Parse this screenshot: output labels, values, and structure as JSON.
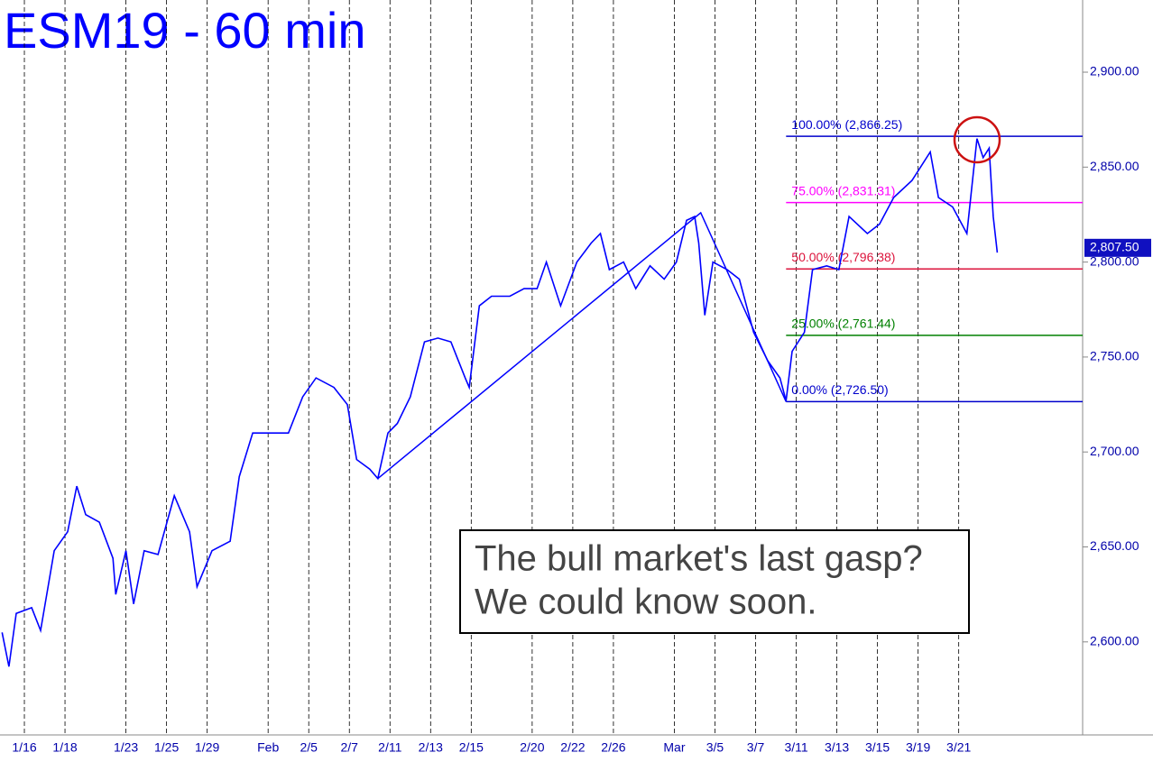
{
  "chart_data": {
    "type": "line",
    "title": "ESM19 - 60 min",
    "x": [
      -1.1,
      -0.76,
      -0.4,
      0.36,
      0.8,
      1.47,
      2.13,
      2.58,
      3.02,
      3.69,
      4.36,
      4.5,
      5.0,
      5.38,
      5.9,
      6.58,
      7.38,
      8.13,
      8.5,
      9.24,
      10.13,
      10.58,
      11.24,
      12.1,
      13.0,
      13.7,
      14.36,
      15.24,
      15.9,
      16.36,
      17.0,
      17.4,
      17.9,
      18.36,
      19.0,
      19.7,
      20.36,
      21.0,
      21.7,
      21.9,
      22.4,
      23.0,
      23.9,
      24.6,
      25.24,
      25.7,
      26.4,
      27.2,
      27.9,
      28.36,
      28.8,
      29.5,
      30.1,
      30.8,
      31.5,
      32.1,
      32.6,
      33.0,
      33.2,
      33.5,
      33.9,
      34.6,
      35.2,
      35.9,
      36.6,
      37.2,
      37.5,
      37.8,
      38.4,
      38.8,
      39.5,
      40.1,
      40.6,
      41.5,
      42.1,
      42.8,
      43.7,
      44.6,
      45.0,
      45.7,
      46.4,
      46.9,
      47.2,
      47.5,
      47.7,
      47.9
    ],
    "values": [
      2605,
      2587,
      2615,
      2618,
      2606,
      2648,
      2658,
      2682,
      2667,
      2663,
      2644,
      2625,
      2648,
      2620,
      2648,
      2646,
      2677,
      2658,
      2629,
      2648,
      2653,
      2687,
      2710,
      2710,
      2710,
      2729,
      2739,
      2734,
      2725,
      2696,
      2691,
      2686,
      2710,
      2715,
      2729,
      2758,
      2760,
      2758,
      2739,
      2734,
      2777,
      2782,
      2782,
      2786,
      2786,
      2800,
      2777,
      2800,
      2810,
      2815,
      2796,
      2800,
      2786,
      2798,
      2791,
      2800,
      2822,
      2824,
      2810,
      2772,
      2800,
      2796,
      2791,
      2763,
      2748,
      2739,
      2727,
      2753,
      2763,
      2796,
      2798,
      2796,
      2824,
      2815,
      2820,
      2834,
      2843,
      2858,
      2834,
      2829,
      2815,
      2865,
      2855,
      2860,
      2824,
      2805
    ],
    "color": "#0000ff",
    "xlim": [
      -1.2,
      52.1
    ],
    "xticks": [
      {
        "value": 0,
        "label": "1/16"
      },
      {
        "value": 2,
        "label": "1/18"
      },
      {
        "value": 5,
        "label": "1/23"
      },
      {
        "value": 7,
        "label": "1/25"
      },
      {
        "value": 9,
        "label": "1/29"
      },
      {
        "value": 12,
        "label": "Feb"
      },
      {
        "value": 14,
        "label": "2/5"
      },
      {
        "value": 16,
        "label": "2/7"
      },
      {
        "value": 18,
        "label": "2/11"
      },
      {
        "value": 20,
        "label": "2/13"
      },
      {
        "value": 22,
        "label": "2/15"
      },
      {
        "value": 25,
        "label": "2/20"
      },
      {
        "value": 27,
        "label": "2/22"
      },
      {
        "value": 29,
        "label": "2/26"
      },
      {
        "value": 32,
        "label": "Mar"
      },
      {
        "value": 34,
        "label": "3/5"
      },
      {
        "value": 36,
        "label": "3/7"
      },
      {
        "value": 38,
        "label": "3/11"
      },
      {
        "value": 40,
        "label": "3/13"
      },
      {
        "value": 42,
        "label": "3/15"
      },
      {
        "value": 44,
        "label": "3/19"
      },
      {
        "value": 46,
        "label": "3/21"
      }
    ],
    "ylim": [
      2551,
      2938
    ],
    "yticks": [
      {
        "value": 2600,
        "label": "2,600.00"
      },
      {
        "value": 2650,
        "label": "2,650.00"
      },
      {
        "value": 2700,
        "label": "2,700.00"
      },
      {
        "value": 2750,
        "label": "2,750.00"
      },
      {
        "value": 2800,
        "label": "2,800.00"
      },
      {
        "value": 2850,
        "label": "2,850.00"
      },
      {
        "value": 2900,
        "label": "2,900.00"
      }
    ],
    "grid": true,
    "last_price": {
      "value": 2807.5,
      "label": "2,807.50"
    },
    "swing_line": {
      "x": [
        17.4,
        33.3,
        37.5
      ],
      "values": [
        2686,
        2826,
        2726.5
      ],
      "color": "#0000ff"
    },
    "fib_levels": [
      {
        "value": 2866.25,
        "label": "100.00% (2,866.25)",
        "color": "#0000cc"
      },
      {
        "value": 2831.31,
        "label": "75.00% (2,831.31)",
        "color": "#ff00ff"
      },
      {
        "value": 2796.38,
        "label": "50.00% (2,796.38)",
        "color": "#dc143c"
      },
      {
        "value": 2761.44,
        "label": "25.00% (2,761.44)",
        "color": "#008000"
      },
      {
        "value": 2726.5,
        "label": "0.00% (2,726.50)",
        "color": "#0000cc"
      }
    ],
    "fib_start_x": 37.5,
    "annotation": [
      "The bull market's last gasp?",
      "We could know soon."
    ]
  }
}
